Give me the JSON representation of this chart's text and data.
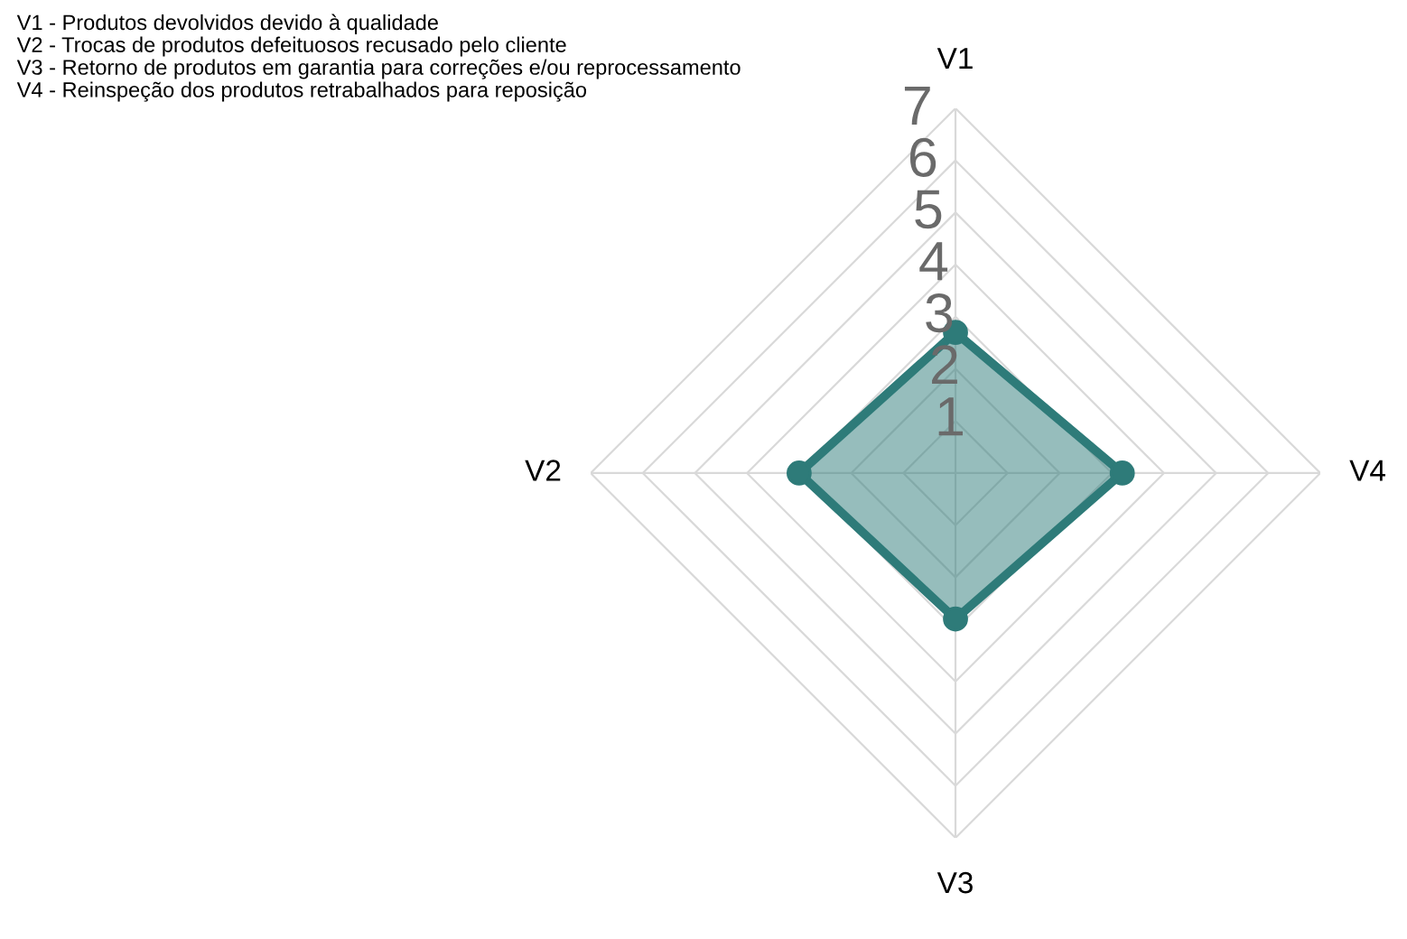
{
  "chart_data": {
    "type": "radar",
    "categories": [
      "V1",
      "V4",
      "V3",
      "V2"
    ],
    "series": [
      {
        "color": "#2e7b79",
        "values": [
          2.7,
          3.2,
          2.8,
          3.0
        ]
      }
    ],
    "ylim": [
      0,
      7
    ],
    "yticks": [
      1,
      2,
      3,
      4,
      5,
      6,
      7
    ],
    "grid": true,
    "marker": "circle",
    "line_style": "solid",
    "annotations": [
      "V1 - Produtos devolvidos devido à qualidade",
      "V2 - Trocas de produtos defeituosos recusado pelo cliente",
      "V3 - Retorno de produtos em garantia para correções e/ou reprocessamento",
      "V4 - Reinspeção dos produtos retrabalhados para reposição"
    ]
  }
}
